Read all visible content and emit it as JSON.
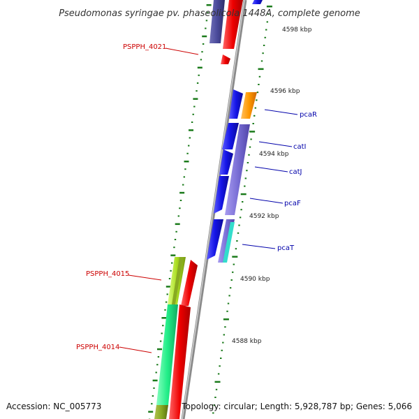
{
  "title": "Pseudomonas syringae pv. phaseolicola 1448A, complete genome",
  "accession": "Accession: NC_005773",
  "summary": "Topology: circular; Length: 5,928,787 bp; Genes: 5,066",
  "scale_labels": [
    "4598 kbp",
    "4596 kbp",
    "4594 kbp",
    "4592 kbp",
    "4590 kbp",
    "4588 kbp"
  ],
  "gene_labels": {
    "left": [
      "PSPPH_4021",
      "PSPPH_4015",
      "PSPPH_4014"
    ],
    "right": [
      "pcaR",
      "catI",
      "catJ",
      "pcaF",
      "pcaT"
    ]
  },
  "colors": {
    "backbone": "#8a8a8a",
    "tick": "#1a7a1a",
    "red_gene": "#ee0000",
    "blue_gene": "#1414e6",
    "purple_gene": "#7a6fd6",
    "orange_gene": "#ff9900",
    "teal_gene": "#33ddcc",
    "green_gene": "#22ee88",
    "olive_gene": "#88aa22",
    "gene_label_red": "#cc0000",
    "gene_label_blue": "#0000aa"
  }
}
